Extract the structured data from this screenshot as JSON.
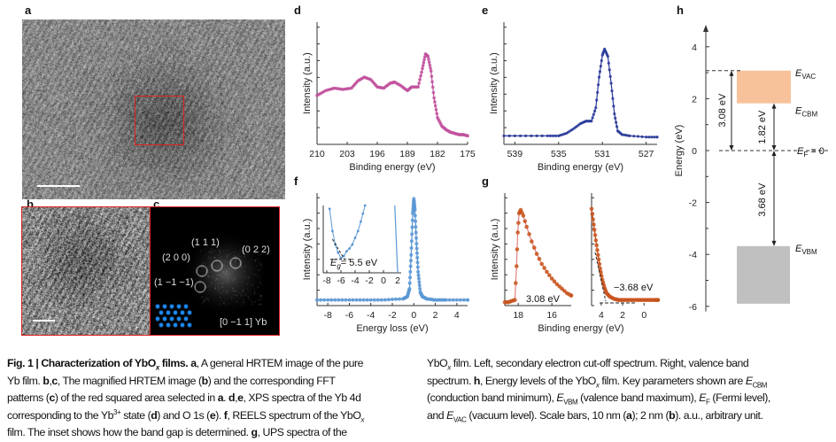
{
  "panels": {
    "a": {
      "label": "a"
    },
    "b": {
      "label": "b"
    },
    "c": {
      "label": "c",
      "spots": [
        "(1 1 1)",
        "(0 2 2)",
        "(2 0 0)",
        "(1 −1 −1)"
      ],
      "zone_axis": "[0 −1 1] Yb"
    },
    "d": {
      "label": "d"
    },
    "e": {
      "label": "e"
    },
    "f": {
      "label": "f",
      "inset_annotation": "= 5.5 eV",
      "inset_symbol": "E",
      "inset_symbol_sub": "g"
    },
    "g": {
      "label": "g",
      "left_annotation": "3.08 eV",
      "right_annotation": "−3.68 eV"
    },
    "h": {
      "label": "h"
    }
  },
  "colors": {
    "d": "#c2529e",
    "e": "#2a3a99",
    "f": "#5b97d4",
    "g": "#c8541c",
    "g_line": "#e08080",
    "cbm_box": "#f7c29a",
    "vbm_box": "#c0c0c0",
    "roi": "#e02020"
  },
  "chart_data": [
    {
      "panel": "d",
      "type": "scatter",
      "xlabel": "Binding energy (eV)",
      "ylabel": "Intensity (a.u.)",
      "xlim": [
        210,
        175
      ],
      "ylim": [
        0,
        1
      ],
      "xticks": [
        210,
        203,
        196,
        189,
        182,
        175
      ],
      "x": [
        210,
        208,
        206,
        204,
        202,
        200.5,
        199,
        197.5,
        196,
        194.5,
        193,
        192,
        190.5,
        189,
        188,
        186.5,
        185.5,
        184.8,
        184.2,
        183.5,
        182.8,
        182,
        181,
        180,
        179,
        178,
        177,
        176,
        175
      ],
      "y": [
        0.4,
        0.44,
        0.46,
        0.45,
        0.46,
        0.52,
        0.55,
        0.53,
        0.47,
        0.46,
        0.5,
        0.51,
        0.48,
        0.44,
        0.47,
        0.47,
        0.62,
        0.74,
        0.72,
        0.6,
        0.38,
        0.22,
        0.15,
        0.12,
        0.1,
        0.09,
        0.08,
        0.08,
        0.07
      ]
    },
    {
      "panel": "e",
      "type": "scatter",
      "xlabel": "Binding energy (eV)",
      "ylabel": "Intensity (a.u.)",
      "xlim": [
        540,
        526
      ],
      "ylim": [
        0,
        1
      ],
      "xticks": [
        539,
        535,
        531,
        527
      ],
      "x": [
        540,
        538,
        536,
        535,
        534.3,
        533.6,
        533,
        532.5,
        532,
        531.6,
        531.3,
        531,
        530.8,
        530.5,
        530.2,
        529.9,
        529.6,
        529.2,
        528.5,
        527,
        526
      ],
      "y": [
        0.07,
        0.07,
        0.07,
        0.07,
        0.09,
        0.13,
        0.17,
        0.19,
        0.19,
        0.3,
        0.55,
        0.73,
        0.78,
        0.72,
        0.5,
        0.25,
        0.11,
        0.08,
        0.07,
        0.06,
        0.06
      ]
    },
    {
      "panel": "f",
      "type": "scatter",
      "xlabel": "Energy loss (eV)",
      "ylabel": "Intensity (a.u.)",
      "xlim": [
        -9,
        5
      ],
      "ylim": [
        0,
        1
      ],
      "xticks": [
        -8,
        -6,
        -4,
        -2,
        0,
        2,
        4
      ],
      "x": [
        -9,
        -7,
        -5,
        -3,
        -1,
        -0.6,
        -0.4,
        -0.25,
        -0.1,
        0,
        0.1,
        0.25,
        0.4,
        0.6,
        0.8,
        1.2,
        2,
        3,
        5
      ],
      "y": [
        0.05,
        0.05,
        0.05,
        0.05,
        0.06,
        0.08,
        0.15,
        0.45,
        0.82,
        0.95,
        0.85,
        0.55,
        0.3,
        0.12,
        0.08,
        0.06,
        0.05,
        0.05,
        0.05
      ],
      "inset": {
        "xlim": [
          -8.5,
          2.5
        ],
        "xticks": [
          -8,
          -6,
          -4,
          -2,
          0,
          2
        ],
        "x": [
          -7.6,
          -7.2,
          -6.8,
          -6.4,
          -6.0,
          -5.6,
          -5.2,
          -4.8,
          -4.4,
          -4.0,
          -3.6,
          -3.2,
          -2.9,
          -2.6
        ],
        "y": [
          0.95,
          0.62,
          0.42,
          0.3,
          0.22,
          0.25,
          0.32,
          0.36,
          0.42,
          0.52,
          0.62,
          0.76,
          0.88,
          1.0
        ],
        "band_gap": 5.5
      }
    },
    {
      "panel": "g-left",
      "type": "scatter",
      "xlabel": "Binding energy (eV)",
      "ylabel": "Intensity (a.u.)",
      "xlim": [
        18.8,
        14.85
      ],
      "ylim": [
        0,
        1
      ],
      "xticks": [
        18,
        16
      ],
      "x": [
        18.8,
        18.6,
        18.4,
        18.2,
        18.1,
        18.03,
        17.95,
        17.85,
        17.7,
        17.5,
        17.2,
        16.9,
        16.6,
        16.3,
        16.0,
        15.7,
        15.4,
        15.1,
        14.85
      ],
      "y": [
        0.03,
        0.03,
        0.04,
        0.05,
        0.35,
        0.65,
        0.82,
        0.85,
        0.8,
        0.7,
        0.57,
        0.46,
        0.37,
        0.3,
        0.24,
        0.19,
        0.15,
        0.11,
        0.09
      ],
      "cutoff": 3.08
    },
    {
      "panel": "g-right",
      "type": "scatter",
      "xlim": [
        4.9,
        -1.3
      ],
      "ylim": [
        0,
        1
      ],
      "xticks": [
        4,
        2,
        0
      ],
      "x": [
        4.9,
        4.7,
        4.5,
        4.3,
        4.1,
        3.9,
        3.7,
        3.5,
        3.2,
        2.8,
        2.4,
        2,
        1.5,
        1,
        0.5,
        0,
        -0.5,
        -1,
        -1.3
      ],
      "y": [
        0.86,
        0.72,
        0.58,
        0.45,
        0.33,
        0.23,
        0.16,
        0.11,
        0.08,
        0.06,
        0.05,
        0.05,
        0.05,
        0.05,
        0.05,
        0.05,
        0.05,
        0.05,
        0.05
      ],
      "vbm": -3.68
    },
    {
      "panel": "h",
      "type": "diagram",
      "ylabel": "Energy (eV)",
      "ylim": [
        -6,
        4.5
      ],
      "yticks": [
        4,
        2,
        0,
        -2,
        -4,
        -6
      ],
      "levels": {
        "E_VAC": 3.08,
        "E_CBM": 1.82,
        "E_F": 0,
        "E_VBM": -3.68,
        "VBM_bottom": -5.9
      },
      "labels": {
        "vac": "VAC",
        "cbm": "CBM",
        "f": "F",
        "vbm": "VBM",
        "f_suffix": " = 0",
        "E": "E"
      },
      "arrows": [
        "3.08 eV",
        "1.82 eV",
        "3.68 eV"
      ]
    }
  ],
  "caption": {
    "left": [
      [
        {
          "t": "Fig. 1 | Characterization of YbO",
          "b": 1
        },
        {
          "t": "x",
          "b": 1,
          "i": 1,
          "sub": 1
        },
        {
          "t": " films. ",
          "b": 1
        },
        {
          "t": "a",
          "b": 1
        },
        {
          "t": ", A general HRTEM image of the pure"
        }
      ],
      [
        {
          "t": "Yb film. "
        },
        {
          "t": "b",
          "b": 1
        },
        {
          "t": ","
        },
        {
          "t": "c",
          "b": 1
        },
        {
          "t": ", The magnified HRTEM image ("
        },
        {
          "t": "b",
          "b": 1
        },
        {
          "t": ") and the corresponding FFT"
        }
      ],
      [
        {
          "t": "patterns ("
        },
        {
          "t": "c",
          "b": 1
        },
        {
          "t": ") of the red squared area selected in "
        },
        {
          "t": "a",
          "b": 1
        },
        {
          "t": ". "
        },
        {
          "t": "d",
          "b": 1
        },
        {
          "t": ","
        },
        {
          "t": "e",
          "b": 1
        },
        {
          "t": ", XPS spectra of the Yb 4d"
        }
      ],
      [
        {
          "t": "corresponding to the Yb"
        },
        {
          "t": "3+",
          "sup": 1
        },
        {
          "t": " state ("
        },
        {
          "t": "d",
          "b": 1
        },
        {
          "t": ") and O 1s ("
        },
        {
          "t": "e",
          "b": 1
        },
        {
          "t": "). "
        },
        {
          "t": "f",
          "b": 1
        },
        {
          "t": ", REELS spectrum of the YbO"
        },
        {
          "t": "x",
          "i": 1,
          "sub": 1
        }
      ],
      [
        {
          "t": "film. The inset shows how the band gap is determined. "
        },
        {
          "t": "g",
          "b": 1
        },
        {
          "t": ", UPS spectra of the"
        }
      ]
    ],
    "right": [
      [
        {
          "t": "YbO"
        },
        {
          "t": "x",
          "i": 1,
          "sub": 1
        },
        {
          "t": " film. Left, secondary electron cut-off spectrum. Right, valence band"
        }
      ],
      [
        {
          "t": "spectrum. "
        },
        {
          "t": "h",
          "b": 1
        },
        {
          "t": ", Energy levels of the YbO"
        },
        {
          "t": "x",
          "i": 1,
          "sub": 1
        },
        {
          "t": " film. Key parameters shown are "
        },
        {
          "t": "E",
          "i": 1
        },
        {
          "t": "CBM",
          "sub": 1
        }
      ],
      [
        {
          "t": "(conduction band minimum), "
        },
        {
          "t": "E",
          "i": 1
        },
        {
          "t": "VBM",
          "sub": 1
        },
        {
          "t": " (valence band maximum), "
        },
        {
          "t": "E",
          "i": 1
        },
        {
          "t": "F",
          "sub": 1
        },
        {
          "t": " (Fermi level),"
        }
      ],
      [
        {
          "t": "and "
        },
        {
          "t": "E",
          "i": 1
        },
        {
          "t": "VAC",
          "sub": 1
        },
        {
          "t": " (vacuum level). Scale bars, 10 nm ("
        },
        {
          "t": "a",
          "b": 1
        },
        {
          "t": "); 2 nm ("
        },
        {
          "t": "b",
          "b": 1
        },
        {
          "t": "). a.u., arbitrary unit."
        }
      ]
    ]
  }
}
